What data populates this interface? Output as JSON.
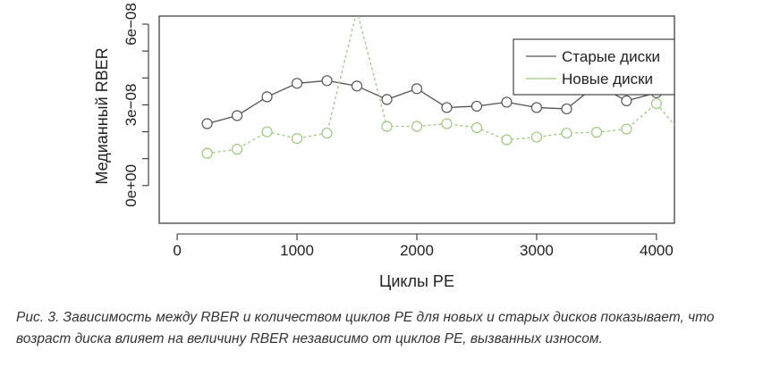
{
  "chart_data": {
    "type": "line",
    "title": "",
    "xlabel": "Циклы PE",
    "ylabel": "Медианный RBER",
    "xlim": [
      -150,
      4150
    ],
    "ylim": [
      -1.4e-08,
      6.3e-08
    ],
    "x_ticks": [
      0,
      1000,
      2000,
      3000,
      4000
    ],
    "x_tick_labels": [
      "0",
      "1000",
      "2000",
      "3000",
      "4000"
    ],
    "y_ticks": [
      0,
      3e-08,
      6e-08
    ],
    "y_tick_labels": [
      "0e+00",
      "3e−08",
      "6e−08"
    ],
    "grid": false,
    "legend_position": "top-right",
    "series": [
      {
        "name": "Старые диски",
        "color": "#555555",
        "style": "solid",
        "x": [
          250,
          500,
          750,
          1000,
          1250,
          1500,
          1750,
          2000,
          2250,
          2500,
          2750,
          3000,
          3250,
          3500,
          3750,
          4000,
          4150
        ],
        "y": [
          2.3e-08,
          2.6e-08,
          3.3e-08,
          3.8e-08,
          3.9e-08,
          3.7e-08,
          3.2e-08,
          3.6e-08,
          2.9e-08,
          2.95e-08,
          3.1e-08,
          2.9e-08,
          2.85e-08,
          3.75e-08,
          3.15e-08,
          3.45e-08,
          4.25e-08
        ]
      },
      {
        "name": "Новые диски",
        "color": "#9acb7c",
        "style": "dashed",
        "x": [
          250,
          500,
          750,
          1000,
          1250,
          1500,
          1750,
          2000,
          2250,
          2500,
          2750,
          3000,
          3250,
          3500,
          3750,
          4000,
          4150
        ],
        "y": [
          1.2e-08,
          1.35e-08,
          2e-08,
          1.75e-08,
          1.95e-08,
          6.5e-08,
          2.2e-08,
          2.2e-08,
          2.3e-08,
          2.15e-08,
          1.7e-08,
          1.8e-08,
          1.95e-08,
          1.98e-08,
          2.1e-08,
          3.05e-08,
          2.25e-08
        ]
      }
    ]
  },
  "caption": "Рис. 3. Зависимость между RBER и количеством циклов PE для новых и старых дисков показывает, что возраст диска влияет на величину RBER независимо от циклов PE, вызванных износом."
}
